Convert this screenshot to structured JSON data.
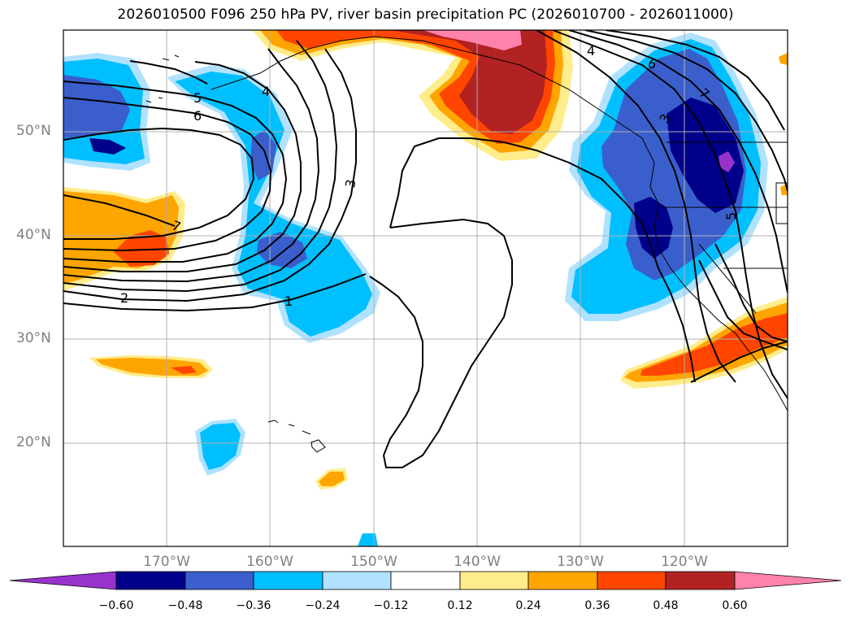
{
  "title": "2026010500 F096 250 hPa PV, river basin precipitation PC (2026010700 - 2026011000)",
  "lat_labels": [
    "50°N",
    "40°N",
    "30°N",
    "20°N"
  ],
  "lon_labels": [
    "170°W",
    "160°W",
    "150°W",
    "140°W",
    "130°W",
    "120°W"
  ],
  "pv_contour_labels": [
    "1",
    "2",
    "3",
    "4",
    "5",
    "6",
    "7",
    "3",
    "4",
    "6",
    "7",
    "5"
  ],
  "colorbar": {
    "labels": [
      "−0.60",
      "−0.48",
      "−0.36",
      "−0.24",
      "−0.12",
      "0.12",
      "0.24",
      "0.36",
      "0.48",
      "0.60"
    ],
    "colors": [
      "#9932cc",
      "#00008b",
      "#3a5fcd",
      "#00bfff",
      "#b0e2ff",
      "#ffffff",
      "#ffec8b",
      "#ffa500",
      "#ff4500",
      "#b22222",
      "#ff82ab"
    ]
  }
}
